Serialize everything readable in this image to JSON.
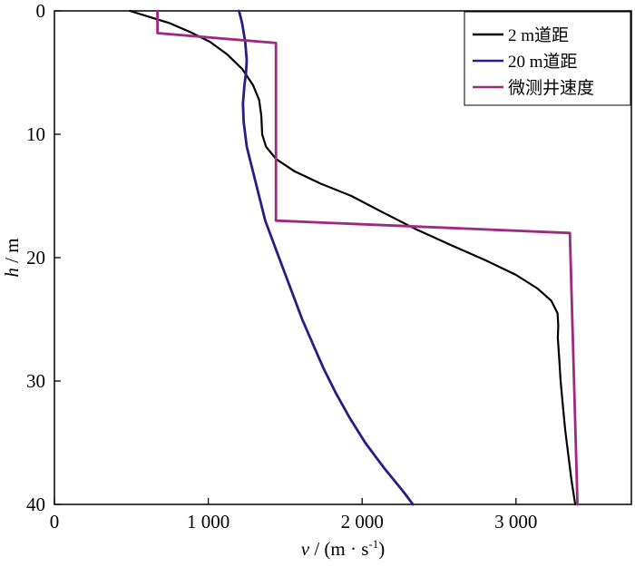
{
  "chart_data": {
    "type": "line",
    "xlabel": {
      "var": "v",
      "rest": " / (m · s",
      "sup": "-1",
      "close": ")"
    },
    "ylabel": {
      "var": "h",
      "rest": " / m"
    },
    "xlim": [
      0,
      3750
    ],
    "ylim": [
      0,
      40
    ],
    "y_inverted": true,
    "x_ticks": [
      {
        "value": 0,
        "label": "0"
      },
      {
        "value": 1000,
        "label": "1 000"
      },
      {
        "value": 2000,
        "label": "2 000"
      },
      {
        "value": 3000,
        "label": "3 000"
      }
    ],
    "y_ticks": [
      {
        "value": 0,
        "label": "0"
      },
      {
        "value": 10,
        "label": "10"
      },
      {
        "value": 20,
        "label": "20"
      },
      {
        "value": 30,
        "label": "30"
      },
      {
        "value": 40,
        "label": "40"
      }
    ],
    "grid": false,
    "legend_position": "top-right",
    "series": [
      {
        "name": "2 m道距",
        "color": "#000000",
        "points": [
          [
            490,
            0
          ],
          [
            620,
            0.5
          ],
          [
            750,
            1
          ],
          [
            880,
            1.7
          ],
          [
            1010,
            2.5
          ],
          [
            1120,
            3.5
          ],
          [
            1220,
            4.7
          ],
          [
            1290,
            6
          ],
          [
            1330,
            7.2
          ],
          [
            1345,
            8.5
          ],
          [
            1350,
            10
          ],
          [
            1375,
            11
          ],
          [
            1440,
            12
          ],
          [
            1560,
            13
          ],
          [
            1730,
            14
          ],
          [
            1930,
            15
          ],
          [
            2130,
            16.3
          ],
          [
            2350,
            17.7
          ],
          [
            2580,
            19
          ],
          [
            2800,
            20.2
          ],
          [
            3000,
            21.4
          ],
          [
            3140,
            22.5
          ],
          [
            3230,
            23.5
          ],
          [
            3270,
            24.5
          ],
          [
            3275,
            25.5
          ],
          [
            3272,
            26.5
          ],
          [
            3280,
            28
          ],
          [
            3290,
            30
          ],
          [
            3305,
            32
          ],
          [
            3320,
            34
          ],
          [
            3340,
            36
          ],
          [
            3360,
            38
          ],
          [
            3385,
            40
          ]
        ]
      },
      {
        "name": "20 m道距",
        "color": "#2e1a87",
        "points": [
          [
            1200,
            0
          ],
          [
            1220,
            1
          ],
          [
            1240,
            2.5
          ],
          [
            1250,
            4
          ],
          [
            1245,
            5
          ],
          [
            1235,
            6
          ],
          [
            1225,
            7.5
          ],
          [
            1230,
            9
          ],
          [
            1250,
            11
          ],
          [
            1290,
            13
          ],
          [
            1330,
            15
          ],
          [
            1370,
            17
          ],
          [
            1430,
            19
          ],
          [
            1490,
            21
          ],
          [
            1550,
            23
          ],
          [
            1610,
            25
          ],
          [
            1680,
            27
          ],
          [
            1750,
            29
          ],
          [
            1830,
            31
          ],
          [
            1920,
            33
          ],
          [
            2020,
            35
          ],
          [
            2140,
            37
          ],
          [
            2270,
            39
          ],
          [
            2330,
            40
          ]
        ]
      },
      {
        "name": "微测井速度",
        "color": "#a0287f",
        "points": [
          [
            670,
            0
          ],
          [
            670,
            1.8
          ],
          [
            1440,
            2.6
          ],
          [
            1440,
            17
          ],
          [
            3350,
            18
          ],
          [
            3400,
            40
          ]
        ]
      }
    ]
  }
}
